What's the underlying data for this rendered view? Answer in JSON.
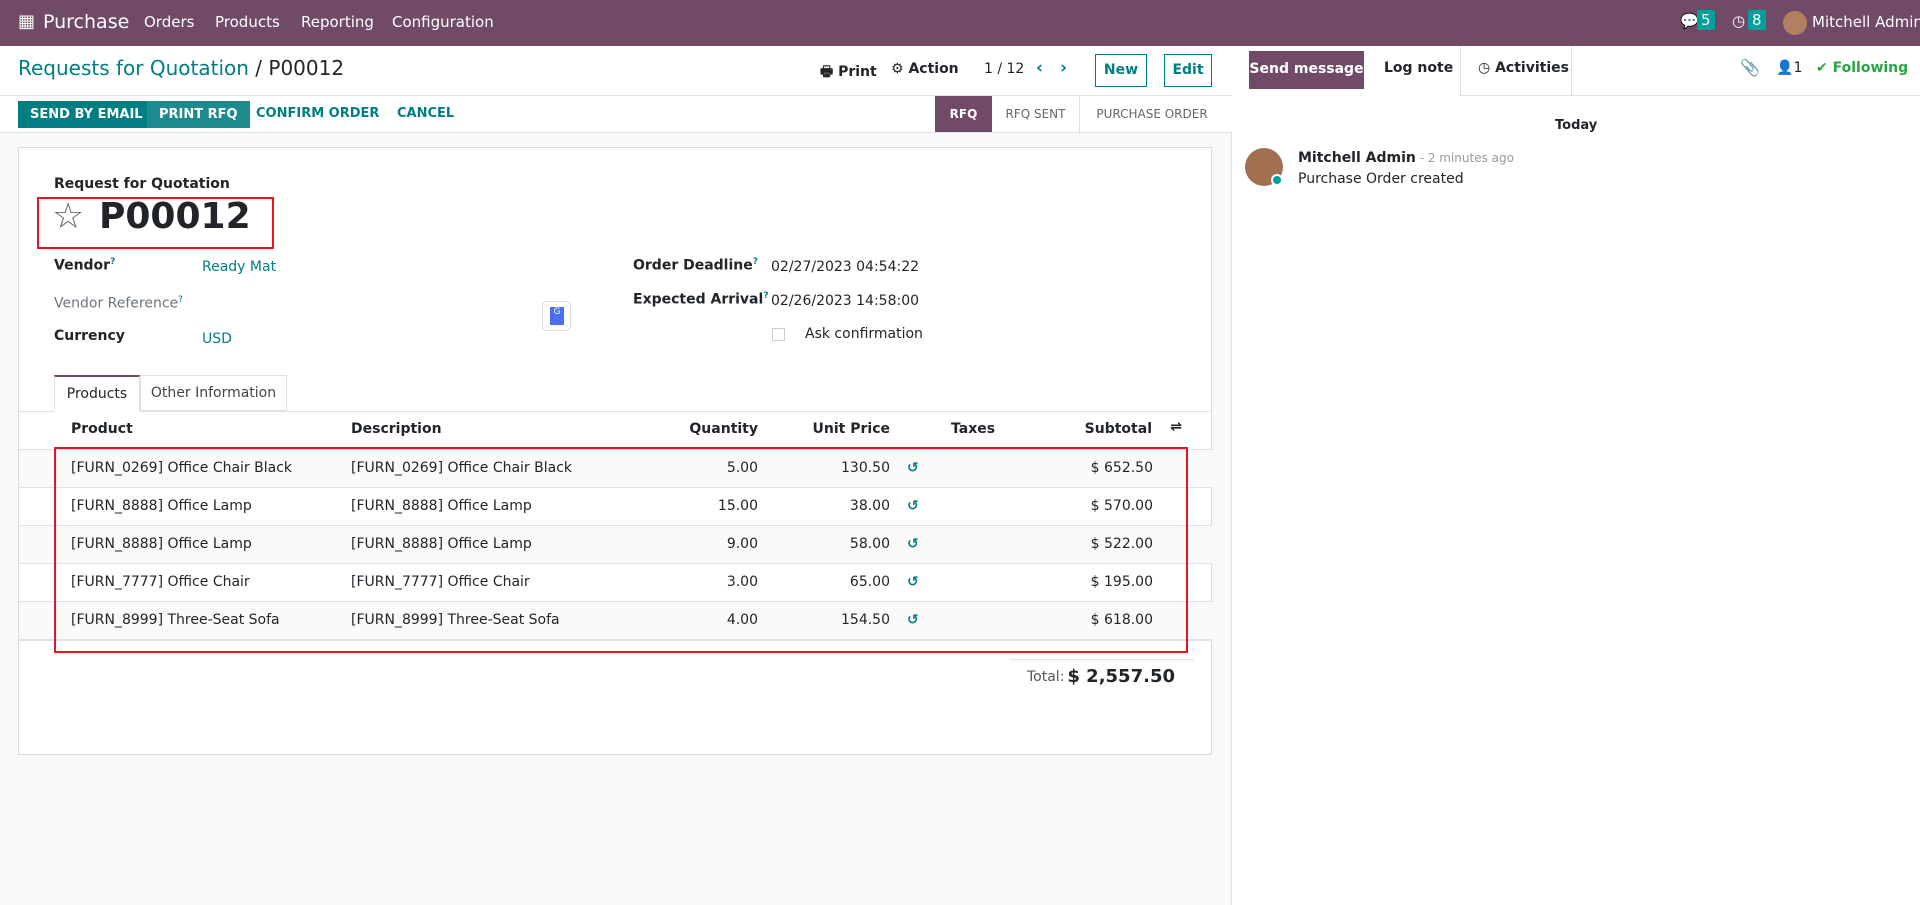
{
  "navbar": {
    "app": "Purchase",
    "menu": [
      "Orders",
      "Products",
      "Reporting",
      "Configuration"
    ],
    "messages_count": "5",
    "activities_count": "8",
    "user": "Mitchell Admin",
    "color": "#704a66"
  },
  "control": {
    "breadcrumb_parent": "Requests for Quotation",
    "breadcrumb_current": "P00012",
    "print": "Print",
    "action": "Action",
    "pager": "1 / 12",
    "new": "New",
    "edit": "Edit"
  },
  "statusbar": {
    "buttons": [
      "SEND BY EMAIL",
      "PRINT RFQ",
      "CONFIRM ORDER",
      "CANCEL"
    ],
    "stages": [
      "RFQ",
      "RFQ SENT",
      "PURCHASE ORDER"
    ],
    "active_stage": "RFQ"
  },
  "form": {
    "subtitle": "Request for Quotation",
    "name": "P00012",
    "vendor_label": "Vendor",
    "vendor": "Ready Mat",
    "vendor_ref_label": "Vendor Reference",
    "currency_label": "Currency",
    "currency": "USD",
    "deadline_label": "Order Deadline",
    "deadline": "02/27/2023 04:54:22",
    "arrival_label": "Expected Arrival",
    "arrival": "02/26/2023 14:58:00",
    "ask_confirmation": "Ask confirmation",
    "ask_confirmation_checked": false,
    "help": "?"
  },
  "tabs": [
    "Products",
    "Other Information"
  ],
  "table": {
    "headers": [
      "Product",
      "Description",
      "Quantity",
      "Unit Price",
      "Taxes",
      "Subtotal"
    ],
    "rows": [
      [
        "[FURN_0269] Office Chair Black",
        "[FURN_0269] Office Chair Black",
        "5.00",
        "130.50",
        "",
        "$ 652.50"
      ],
      [
        "[FURN_8888] Office Lamp",
        "[FURN_8888] Office Lamp",
        "15.00",
        "38.00",
        "",
        "$ 570.00"
      ],
      [
        "[FURN_8888] Office Lamp",
        "[FURN_8888] Office Lamp",
        "9.00",
        "58.00",
        "",
        "$ 522.00"
      ],
      [
        "[FURN_7777] Office Chair",
        "[FURN_7777] Office Chair",
        "3.00",
        "65.00",
        "",
        "$ 195.00"
      ],
      [
        "[FURN_8999] Three-Seat Sofa",
        "[FURN_8999] Three-Seat Sofa",
        "4.00",
        "154.50",
        "",
        "$ 618.00"
      ]
    ],
    "total_label": "Total:",
    "total": "$ 2,557.50"
  },
  "chatter": {
    "send_message": "Send message",
    "log_note": "Log note",
    "activities": "Activities",
    "followers": "1",
    "following": "Following",
    "date": "Today",
    "author": "Mitchell Admin",
    "time": " - 2 minutes ago",
    "message": "Purchase Order created"
  }
}
